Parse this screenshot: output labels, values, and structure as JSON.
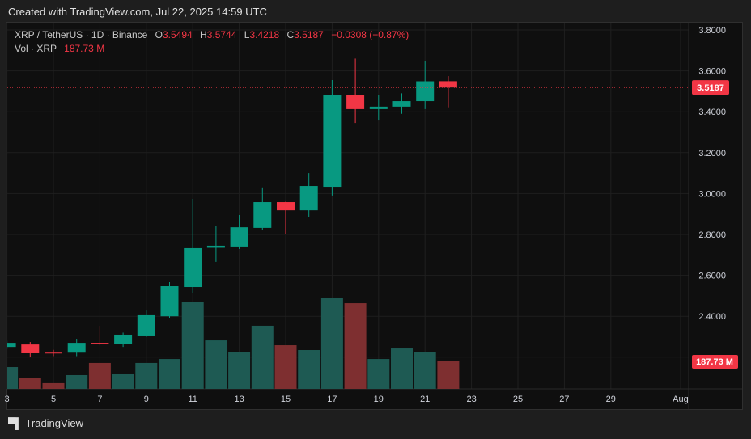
{
  "header": {
    "created": "Created with TradingView.com, Jul 22, 2025 14:59 UTC"
  },
  "legend": {
    "symbol": "XRP / TetherUS · 1D · Binance",
    "o_label": "O",
    "o": "3.5494",
    "h_label": "H",
    "h": "3.5744",
    "l_label": "L",
    "l": "3.4218",
    "c_label": "C",
    "c": "3.5187",
    "change": "−0.0308 (−0.87%)",
    "vol_label": "Vol · XRP",
    "vol": "187.73 M"
  },
  "colors": {
    "up": "#089981",
    "down": "#f23645",
    "vol_up": "#1e5a53",
    "vol_down": "#7e2f30"
  },
  "chart_data": {
    "type": "candlestick",
    "price_axis": {
      "ticks": [
        "3.8000",
        "3.6000",
        "3.4000",
        "3.2000",
        "3.0000",
        "2.8000",
        "2.6000",
        "2.4000"
      ],
      "range": [
        2.12,
        3.84
      ]
    },
    "time_axis": {
      "ticks": [
        {
          "day": 3,
          "label": "3"
        },
        {
          "day": 5,
          "label": "5"
        },
        {
          "day": 7,
          "label": "7"
        },
        {
          "day": 9,
          "label": "9"
        },
        {
          "day": 11,
          "label": "11"
        },
        {
          "day": 13,
          "label": "13"
        },
        {
          "day": 15,
          "label": "15"
        },
        {
          "day": 17,
          "label": "17"
        },
        {
          "day": 19,
          "label": "19"
        },
        {
          "day": 21,
          "label": "21"
        },
        {
          "day": 23,
          "label": "23"
        },
        {
          "day": 25,
          "label": "25"
        },
        {
          "day": 27,
          "label": "27"
        },
        {
          "day": 29,
          "label": "29"
        },
        {
          "day": 32,
          "label": "Aug"
        }
      ]
    },
    "last_price_label": "3.5187",
    "last_volume_label": "187.73 M",
    "candles": [
      {
        "day": 3,
        "o": 2.25,
        "h": 2.28,
        "l": 2.24,
        "c": 2.27,
        "v": 149
      },
      {
        "day": 4,
        "o": 2.262,
        "h": 2.274,
        "l": 2.199,
        "c": 2.219,
        "v": 77
      },
      {
        "day": 5,
        "o": 2.222,
        "h": 2.236,
        "l": 2.205,
        "c": 2.219,
        "v": 39
      },
      {
        "day": 6,
        "o": 2.222,
        "h": 2.29,
        "l": 2.205,
        "c": 2.27,
        "v": 94
      },
      {
        "day": 7,
        "o": 2.27,
        "h": 2.353,
        "l": 2.258,
        "c": 2.267,
        "v": 177
      },
      {
        "day": 8,
        "o": 2.266,
        "h": 2.32,
        "l": 2.25,
        "c": 2.31,
        "v": 105
      },
      {
        "day": 9,
        "o": 2.306,
        "h": 2.428,
        "l": 2.298,
        "c": 2.405,
        "v": 177
      },
      {
        "day": 10,
        "o": 2.4,
        "h": 2.567,
        "l": 2.393,
        "c": 2.547,
        "v": 204
      },
      {
        "day": 11,
        "o": 2.543,
        "h": 2.974,
        "l": 2.515,
        "c": 2.733,
        "v": 596
      },
      {
        "day": 12,
        "o": 2.735,
        "h": 2.843,
        "l": 2.666,
        "c": 2.745,
        "v": 331
      },
      {
        "day": 13,
        "o": 2.741,
        "h": 2.895,
        "l": 2.729,
        "c": 2.835,
        "v": 254
      },
      {
        "day": 14,
        "o": 2.832,
        "h": 3.03,
        "l": 2.82,
        "c": 2.958,
        "v": 431
      },
      {
        "day": 15,
        "o": 2.958,
        "h": 2.96,
        "l": 2.8,
        "c": 2.918,
        "v": 298
      },
      {
        "day": 16,
        "o": 2.918,
        "h": 3.1,
        "l": 2.887,
        "c": 3.037,
        "v": 265
      },
      {
        "day": 17,
        "o": 3.033,
        "h": 3.555,
        "l": 2.99,
        "c": 3.48,
        "v": 624
      },
      {
        "day": 18,
        "o": 3.48,
        "h": 3.66,
        "l": 3.345,
        "c": 3.413,
        "v": 585
      },
      {
        "day": 19,
        "o": 3.413,
        "h": 3.48,
        "l": 3.357,
        "c": 3.425,
        "v": 204
      },
      {
        "day": 20,
        "o": 3.425,
        "h": 3.49,
        "l": 3.39,
        "c": 3.452,
        "v": 276
      },
      {
        "day": 21,
        "o": 3.452,
        "h": 3.65,
        "l": 3.413,
        "c": 3.549,
        "v": 254
      },
      {
        "day": 22,
        "o": 3.5494,
        "h": 3.5744,
        "l": 3.4218,
        "c": 3.5187,
        "v": 187.73
      }
    ]
  },
  "footer": {
    "logo_mark": "17",
    "brand": "TradingView"
  }
}
